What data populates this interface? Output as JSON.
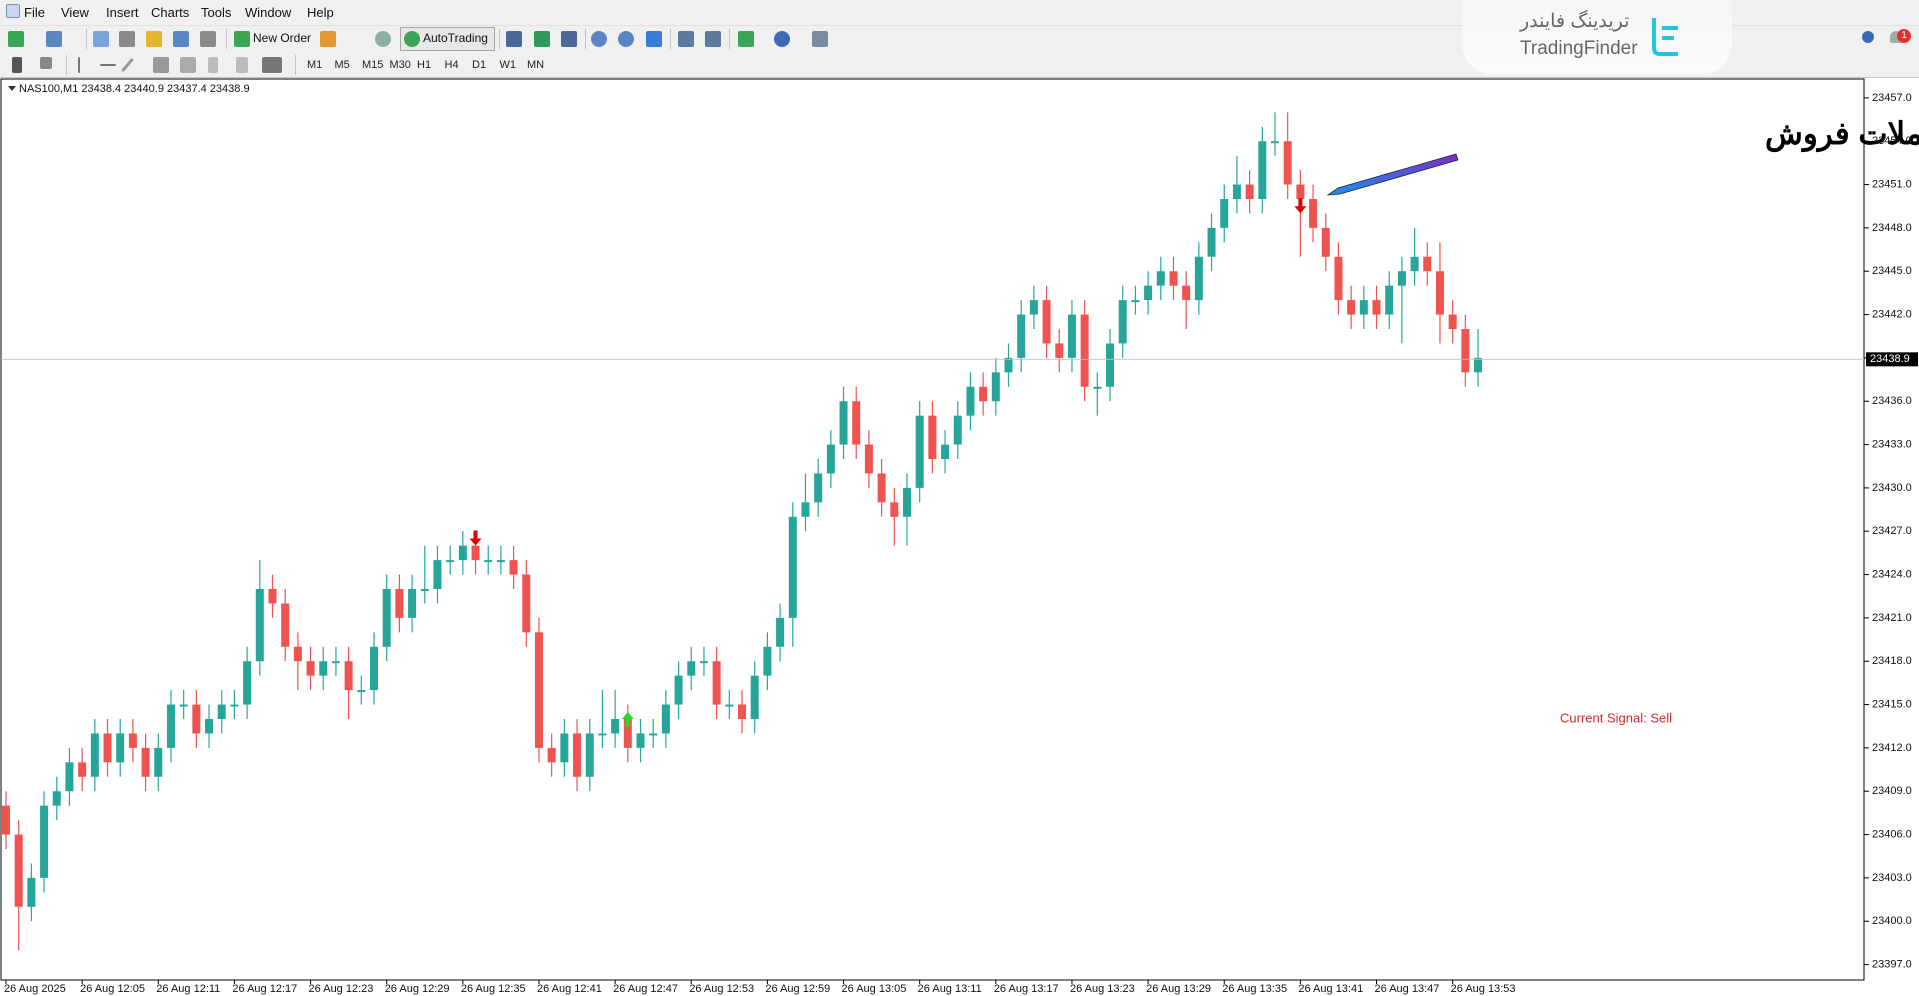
{
  "menu": [
    "File",
    "View",
    "Insert",
    "Charts",
    "Tools",
    "Window",
    "Help"
  ],
  "toolbar": {
    "new_order": "New Order",
    "autotrading": "AutoTrading",
    "timeframes": [
      "M1",
      "M5",
      "M15",
      "M30",
      "H1",
      "H4",
      "D1",
      "W1",
      "MN"
    ]
  },
  "logo": {
    "name_fa": "تریدینگ فایندر",
    "name": "TradingFinder"
  },
  "notifications": 1,
  "chart_data": {
    "type": "candlestick",
    "title": "NAS100,M1  23438.4 23440.9 23437.4 23438.9",
    "annotation": "سیگنال ورود به معاملات فروش",
    "signal_text": "Current Signal: Sell",
    "up_color": "#26a69a",
    "down_color": "#ef5350",
    "grid": false,
    "categories": [
      "26 Aug 2025",
      null,
      null,
      null,
      null,
      null,
      "26 Aug 12:05",
      null,
      null,
      null,
      null,
      null,
      "26 Aug 12:11",
      null,
      null,
      null,
      null,
      null,
      "26 Aug 12:17",
      null,
      null,
      null,
      null,
      null,
      "26 Aug 12:23",
      null,
      null,
      null,
      null,
      null,
      "26 Aug 12:29",
      null,
      null,
      null,
      null,
      null,
      "26 Aug 12:35",
      null,
      null,
      null,
      null,
      null,
      "26 Aug 12:41",
      null,
      null,
      null,
      null,
      null,
      "26 Aug 12:47",
      null,
      null,
      null,
      null,
      null,
      "26 Aug 12:53",
      null,
      null,
      null,
      null,
      null,
      "26 Aug 12:59",
      null,
      null,
      null,
      null,
      null,
      "26 Aug 13:05",
      null,
      null,
      null,
      null,
      null,
      "26 Aug 13:11",
      null,
      null,
      null,
      null,
      null,
      "26 Aug 13:17",
      null,
      null,
      null,
      null,
      null,
      "26 Aug 13:23",
      null,
      null,
      null,
      null,
      null,
      "26 Aug 13:29",
      null,
      null,
      null,
      null,
      null,
      "26 Aug 13:35",
      null,
      null,
      null,
      null,
      null,
      "26 Aug 13:41",
      null,
      null,
      null,
      null,
      null,
      "26 Aug 13:47",
      null,
      null,
      null,
      null,
      null,
      "26 Aug 13:53",
      null,
      null
    ],
    "open": [
      23408,
      23406,
      23401,
      23403,
      23408,
      23409,
      23411,
      23410,
      23413,
      23411,
      23413,
      23412,
      23410,
      23412,
      23415,
      23415,
      23413,
      23414,
      23415,
      23415,
      23418,
      23423,
      23422,
      23419,
      23418,
      23417,
      23418,
      23418,
      23416,
      23416,
      23419,
      23423,
      23421,
      23423,
      23423,
      23425,
      23425,
      23426,
      23425,
      23425,
      23425,
      23424,
      23420,
      23412,
      23411,
      23413,
      23410,
      23413,
      23413,
      23414,
      23412,
      23413,
      23413,
      23415,
      23417,
      23418,
      23418,
      23415,
      23415,
      23414,
      23417,
      23419,
      23421,
      23428,
      23429,
      23431,
      23433,
      23436,
      23433,
      23431,
      23429,
      23428,
      23430,
      23435,
      23432,
      23433,
      23435,
      23437,
      23436,
      23438,
      23439,
      23442,
      23443,
      23440,
      23439,
      23442,
      23437,
      23437,
      23440,
      23443,
      23443,
      23444,
      23445,
      23444,
      23443,
      23446,
      23448,
      23450,
      23451,
      23450,
      23454,
      23454,
      23451,
      23450,
      23448,
      23446,
      23443,
      23442,
      23443,
      23442,
      23444,
      23445,
      23446,
      23445,
      23442,
      23441,
      23438
    ],
    "high": [
      23409,
      23407,
      23404,
      23409,
      23410,
      23412,
      23412,
      23414,
      23414,
      23414,
      23414,
      23413,
      23413,
      23416,
      23416,
      23416,
      23415,
      23416,
      23416,
      23419,
      23425,
      23424,
      23423,
      23420,
      23419,
      23419,
      23419,
      23419,
      23417,
      23420,
      23424,
      23424,
      23424,
      23426,
      23426,
      23426,
      23427,
      23427,
      23426,
      23426,
      23426,
      23425,
      23421,
      23413,
      23414,
      23414,
      23414,
      23416,
      23416,
      23415,
      23414,
      23414,
      23416,
      23418,
      23419,
      23419,
      23419,
      23416,
      23416,
      23418,
      23420,
      23422,
      23429,
      23431,
      23432,
      23434,
      23437,
      23437,
      23434,
      23432,
      23430,
      23431,
      23436,
      23436,
      23434,
      23436,
      23438,
      23438,
      23439,
      23440,
      23443,
      23444,
      23444,
      23441,
      23443,
      23443,
      23438,
      23441,
      23444,
      23444,
      23445,
      23446,
      23446,
      23445,
      23447,
      23449,
      23451,
      23453,
      23452,
      23455,
      23456,
      23456,
      23452,
      23451,
      23449,
      23447,
      23444,
      23444,
      23444,
      23445,
      23446,
      23448,
      23447,
      23447,
      23443,
      23442,
      23441
    ],
    "low": [
      23405,
      23398,
      23400,
      23402,
      23407,
      23408,
      23409,
      23409,
      23410,
      23410,
      23411,
      23409,
      23409,
      23411,
      23414,
      23412,
      23412,
      23413,
      23414,
      23414,
      23417,
      23421,
      23418,
      23416,
      23416,
      23416,
      23417,
      23414,
      23415,
      23415,
      23418,
      23420,
      23420,
      23422,
      23422,
      23424,
      23424,
      23424,
      23424,
      23424,
      23423,
      23419,
      23411,
      23410,
      23410,
      23409,
      23409,
      23412,
      23412,
      23411,
      23411,
      23412,
      23412,
      23414,
      23416,
      23417,
      23414,
      23414,
      23413,
      23413,
      23416,
      23418,
      23419,
      23427,
      23428,
      23430,
      23432,
      23432,
      23430,
      23428,
      23426,
      23426,
      23429,
      23431,
      23431,
      23432,
      23434,
      23435,
      23435,
      23437,
      23438,
      23441,
      23439,
      23438,
      23438,
      23436,
      23435,
      23436,
      23439,
      23442,
      23442,
      23443,
      23443,
      23441,
      23442,
      23445,
      23447,
      23449,
      23449,
      23449,
      23453,
      23450,
      23446,
      23447,
      23445,
      23442,
      23441,
      23441,
      23441,
      23441,
      23440,
      23444,
      23444,
      23440,
      23440,
      23437,
      23437
    ],
    "close": [
      23406,
      23401,
      23403,
      23408,
      23409,
      23411,
      23410,
      23413,
      23411,
      23413,
      23412,
      23410,
      23412,
      23415,
      23415,
      23413,
      23414,
      23415,
      23415,
      23418,
      23423,
      23422,
      23419,
      23418,
      23417,
      23418,
      23418,
      23416,
      23416,
      23419,
      23423,
      23421,
      23423,
      23423,
      23425,
      23425,
      23426,
      23425,
      23425,
      23425,
      23424,
      23420,
      23412,
      23411,
      23413,
      23410,
      23413,
      23413,
      23414,
      23412,
      23413,
      23413,
      23415,
      23417,
      23418,
      23418,
      23415,
      23415,
      23414,
      23417,
      23419,
      23421,
      23428,
      23429,
      23431,
      23433,
      23436,
      23433,
      23431,
      23429,
      23428,
      23430,
      23435,
      23432,
      23433,
      23435,
      23437,
      23436,
      23438,
      23439,
      23442,
      23443,
      23440,
      23439,
      23442,
      23437,
      23437,
      23440,
      23443,
      23443,
      23444,
      23445,
      23444,
      23443,
      23446,
      23448,
      23450,
      23451,
      23450,
      23454,
      23454,
      23451,
      23450,
      23448,
      23446,
      23443,
      23442,
      23443,
      23442,
      23444,
      23445,
      23446,
      23445,
      23442,
      23441,
      23438,
      23439
    ],
    "current_price": 23438.9,
    "signals": [
      {
        "type": "sell",
        "index": 37,
        "price": 23426.5,
        "color": "#e00000"
      },
      {
        "type": "buy",
        "index": 49,
        "price": 23414,
        "color": "#22dd22"
      },
      {
        "type": "sell",
        "index": 102,
        "price": 23449.5,
        "color": "#e00000"
      }
    ],
    "ylim": [
      23396,
      23458.1
    ],
    "yticks": [
      {
        "value": 23457,
        "label": "23457.0"
      },
      {
        "value": 23454,
        "label": "23454.0"
      },
      {
        "value": 23451,
        "label": "23451.0"
      },
      {
        "value": 23448,
        "label": "23448.0"
      },
      {
        "value": 23445,
        "label": "23445.0"
      },
      {
        "value": 23442,
        "label": "23442.0"
      },
      {
        "value": 23439,
        "label": "23439.0"
      },
      {
        "value": 23436,
        "label": "23436.0"
      },
      {
        "value": 23433,
        "label": "23433.0"
      },
      {
        "value": 23430,
        "label": "23430.0"
      },
      {
        "value": 23427,
        "label": "23427.0"
      },
      {
        "value": 23424,
        "label": "23424.0"
      },
      {
        "value": 23421,
        "label": "23421.0"
      },
      {
        "value": 23418,
        "label": "23418.0"
      },
      {
        "value": 23415,
        "label": "23415.0"
      },
      {
        "value": 23412,
        "label": "23412.0"
      },
      {
        "value": 23409,
        "label": "23409.0"
      },
      {
        "value": 23406,
        "label": "23406.0"
      },
      {
        "value": 23403,
        "label": "23403.0"
      },
      {
        "value": 23400,
        "label": "23400.0"
      },
      {
        "value": 23397,
        "label": "23397.0"
      }
    ]
  }
}
